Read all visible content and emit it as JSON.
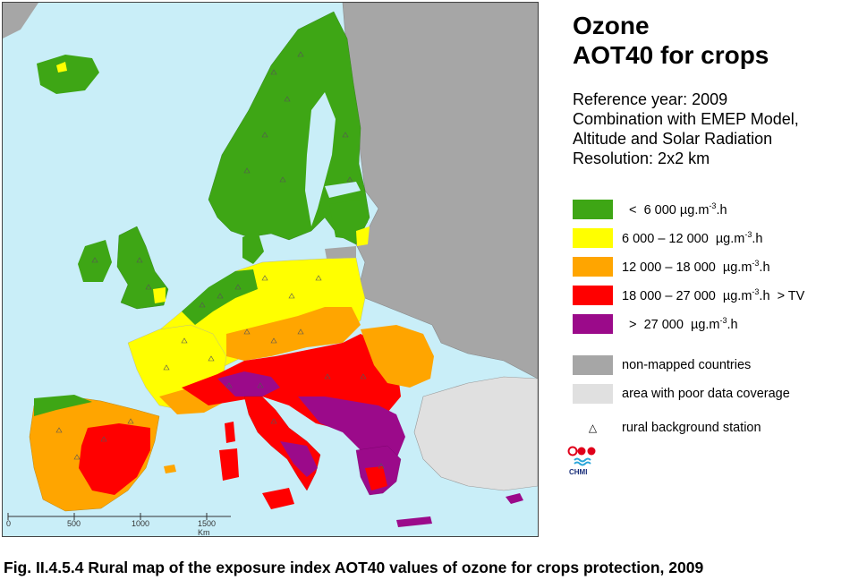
{
  "title": {
    "line1": "Ozone",
    "line2": "AOT40 for crops"
  },
  "subtitle": {
    "line1": "Reference year: 2009",
    "line2": "Combination with EMEP Model,",
    "line3": "Altitude and Solar Radiation",
    "line4": "Resolution: 2x2 km"
  },
  "legend": {
    "items": [
      {
        "color": "#3ea615",
        "prefix": "  <  6 000 µg.m",
        "suffix": ".h"
      },
      {
        "color": "#ffff00",
        "prefix": "6 000 – 12 000  µg.m",
        "suffix": ".h"
      },
      {
        "color": "#ffa500",
        "prefix": "12 000 – 18 000  µg.m",
        "suffix": ".h"
      },
      {
        "color": "#ff0000",
        "prefix": "18 000 – 27 000  µg.m",
        "suffix": ".h  > TV"
      },
      {
        "color": "#9b0a8a",
        "prefix": "  >  27 000  µg.m",
        "suffix": ".h"
      }
    ],
    "exponent": "-3",
    "non_mapped": {
      "color": "#a6a6a6",
      "label": "non-mapped countries"
    },
    "poor_coverage": {
      "color": "#e0e0e0",
      "label": "area with poor data coverage"
    },
    "station": {
      "symbol": "△",
      "label": "rural background station"
    }
  },
  "logo": {
    "text": "CHMI"
  },
  "scale_bar": {
    "ticks": [
      "0",
      "500",
      "1000",
      "1500 Km"
    ]
  },
  "caption": "Fig. II.4.5.4  Rural map of the exposure index AOT40 values of ozone for crops protection, 2009",
  "colors": {
    "sea": "#c9eef8",
    "green": "#3ea615",
    "yellow": "#ffff00",
    "orange": "#ffa500",
    "red": "#ff0000",
    "purple": "#9b0a8a",
    "grey": "#a6a6a6",
    "light_grey": "#e0e0e0"
  }
}
